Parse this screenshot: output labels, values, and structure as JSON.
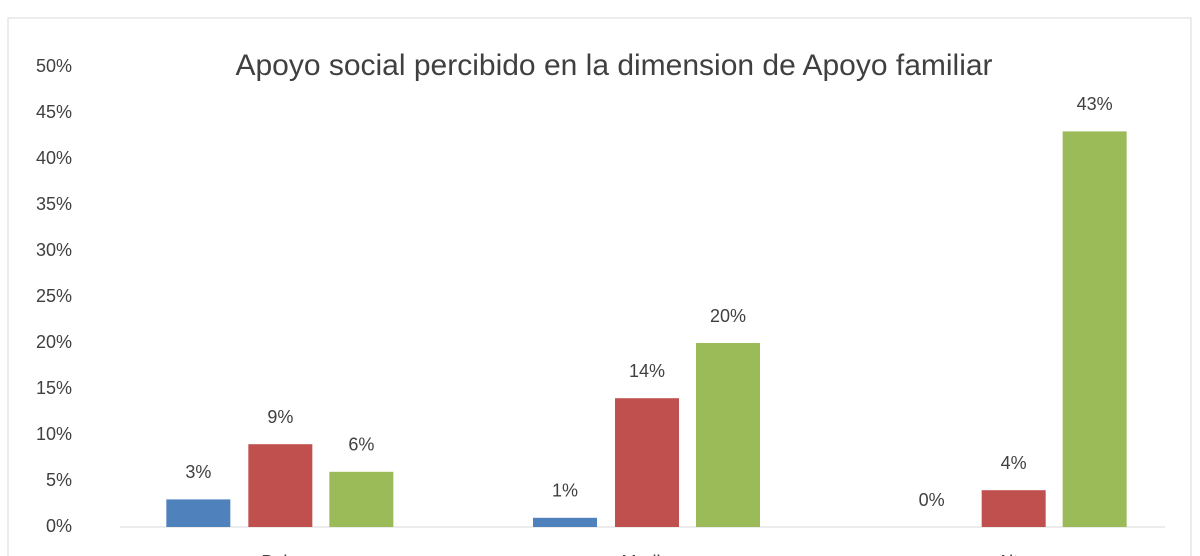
{
  "chart_data": {
    "type": "bar",
    "title": "Apoyo social percibido en la dimension de Apoyo familiar",
    "categories": [
      "Bajo",
      "Medio",
      "Alto"
    ],
    "series": [
      {
        "color": "#4f81bd",
        "values": [
          3,
          1,
          0
        ],
        "value_labels": [
          "3%",
          "1%",
          "0%"
        ]
      },
      {
        "color": "#c0504d",
        "values": [
          9,
          14,
          4
        ],
        "value_labels": [
          "9%",
          "14%",
          "4%"
        ]
      },
      {
        "color": "#9bbb59",
        "values": [
          6,
          20,
          43
        ],
        "value_labels": [
          "6%",
          "20%",
          "43%"
        ]
      }
    ],
    "ylim": [
      0,
      50
    ],
    "yticks": [
      {
        "value": 0,
        "label": "0%"
      },
      {
        "value": 5,
        "label": "5%"
      },
      {
        "value": 10,
        "label": "10%"
      },
      {
        "value": 15,
        "label": "15%"
      },
      {
        "value": 20,
        "label": "20%"
      },
      {
        "value": 25,
        "label": "25%"
      },
      {
        "value": 30,
        "label": "30%"
      },
      {
        "value": 35,
        "label": "35%"
      },
      {
        "value": 40,
        "label": "40%"
      },
      {
        "value": 45,
        "label": "45%"
      },
      {
        "value": 50,
        "label": "50%"
      }
    ],
    "grid": false
  }
}
